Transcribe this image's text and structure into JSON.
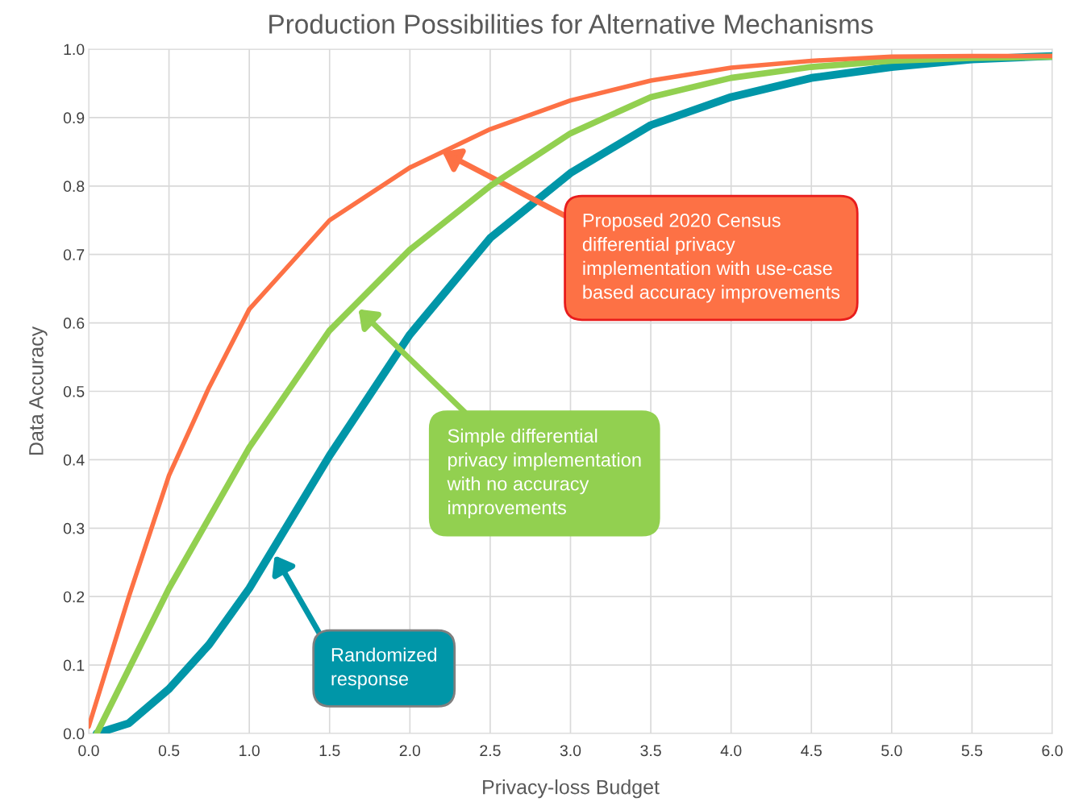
{
  "chart_data": {
    "type": "line",
    "title": "Production Possibilities for Alternative Mechanisms",
    "xlabel": "Privacy-loss Budget",
    "ylabel": "Data Accuracy",
    "xlim": [
      0.0,
      6.0
    ],
    "ylim": [
      0.0,
      1.0
    ],
    "xticks": [
      {
        "value": 0,
        "label": "0.0"
      },
      0.5,
      {
        "value": 1,
        "label": "1.0"
      },
      1.5,
      {
        "value": 2,
        "label": "2.0"
      },
      2.5,
      {
        "value": 3,
        "label": "3.0"
      },
      3.5,
      {
        "value": 4,
        "label": "4.0"
      },
      4.5,
      {
        "value": 5,
        "label": "5.0"
      },
      5.5,
      {
        "value": 6,
        "label": "6.0"
      }
    ],
    "yticks": [
      {
        "value": 0,
        "label": "0.0"
      },
      0.1,
      0.2,
      0.3,
      0.4,
      0.5,
      0.6,
      0.7,
      0.8,
      0.9,
      {
        "value": 1,
        "label": "1.0"
      }
    ],
    "grid": true,
    "legend": false,
    "marker": "none",
    "line_style": "solid",
    "series": [
      {
        "color": "#fd7145",
        "x": [
          0.0,
          0.25,
          0.5,
          0.75,
          1.0,
          1.5,
          2.0,
          2.5,
          3.0,
          3.5,
          4.0,
          4.5,
          5.0,
          5.5,
          6.0
        ],
        "values": [
          0.01,
          0.2,
          0.377,
          0.506,
          0.62,
          0.75,
          0.827,
          0.883,
          0.925,
          0.954,
          0.973,
          0.983,
          0.989,
          0.99,
          0.99
        ]
      },
      {
        "color": "#92d050",
        "x": [
          0.05,
          0.5,
          1.0,
          1.5,
          2.0,
          2.5,
          3.0,
          3.5,
          4.0,
          4.5,
          5.0,
          5.5,
          6.0
        ],
        "values": [
          0.0,
          0.212,
          0.418,
          0.589,
          0.707,
          0.8,
          0.877,
          0.93,
          0.958,
          0.974,
          0.983,
          0.987,
          0.989
        ]
      },
      {
        "color": "#0096a8",
        "x": [
          0.05,
          0.25,
          0.5,
          0.75,
          1.0,
          1.5,
          2.0,
          2.5,
          3.0,
          3.5,
          4.0,
          4.5,
          5.0,
          5.5,
          6.0
        ],
        "values": [
          0.0,
          0.015,
          0.065,
          0.13,
          0.212,
          0.406,
          0.583,
          0.724,
          0.819,
          0.889,
          0.93,
          0.958,
          0.974,
          0.985,
          0.99
        ]
      }
    ],
    "annotations": [
      "Proposed 2020 Census\ndifferential privacy\nimplementation with use-case\nbased accuracy improvements",
      "Simple differential\nprivacy implementation\nwith no accuracy\nimprovements",
      "Randomized\nresponse"
    ]
  }
}
